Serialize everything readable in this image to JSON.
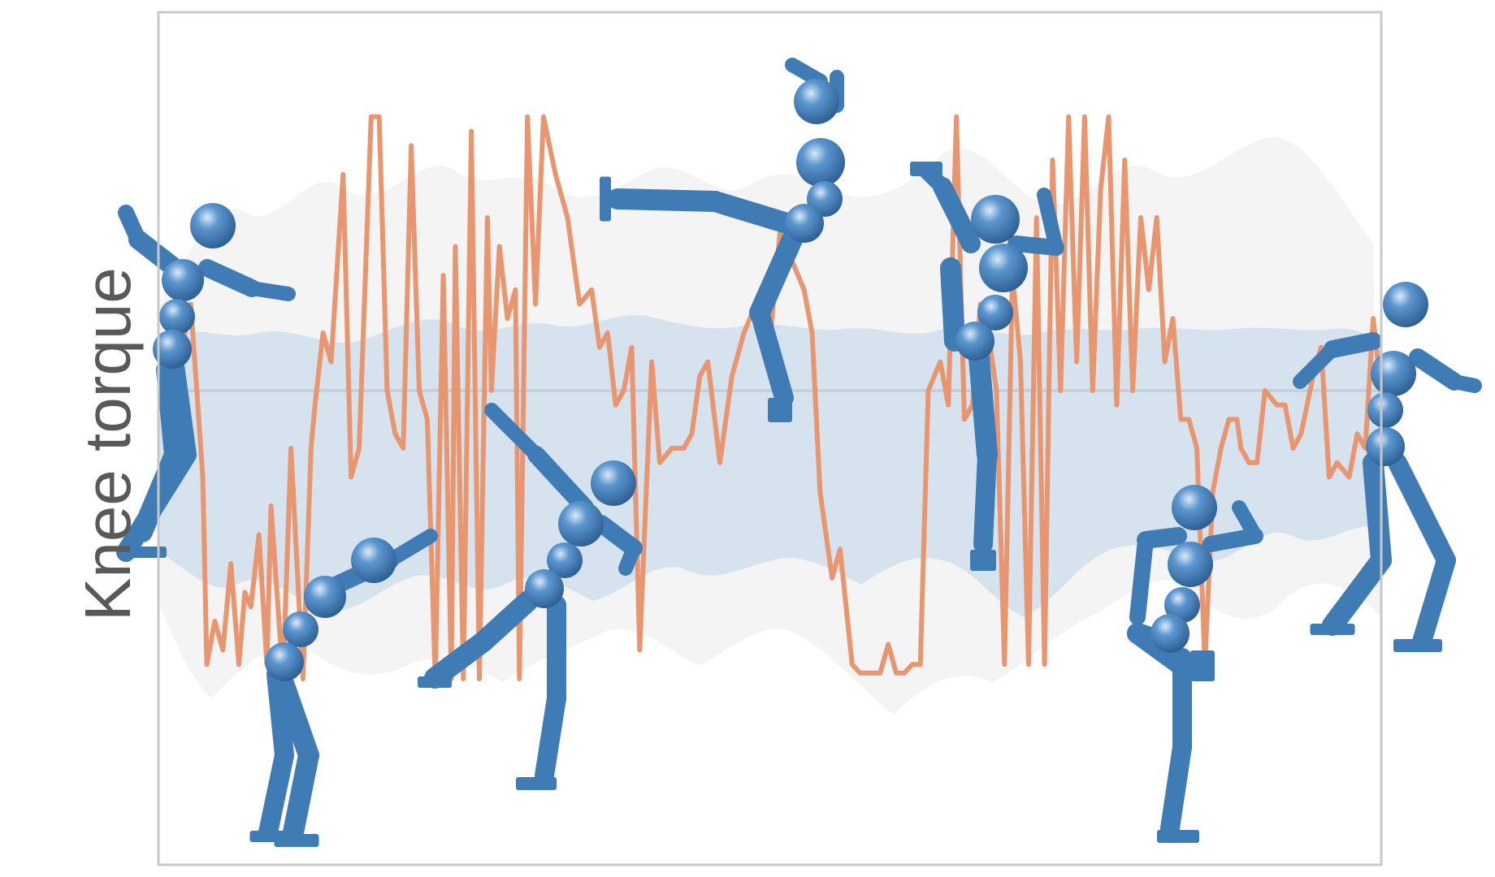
{
  "chart_data": {
    "type": "line",
    "title": "",
    "xlabel": "",
    "ylabel": "Knee torque",
    "xlim": [
      0,
      600
    ],
    "ylim": [
      -1,
      1
    ],
    "grid": false,
    "legend": "none",
    "zero_line": true,
    "series": [
      {
        "x": [
          0,
          6,
          12,
          14,
          18,
          22,
          26,
          30,
          33,
          36,
          40,
          44,
          46,
          52,
          56,
          62,
          66,
          68,
          72,
          76,
          82,
          86,
          90,
          96,
          100,
          104,
          108,
          112,
          116,
          120,
          124,
          128,
          132,
          136,
          138,
          142,
          146,
          150,
          154,
          156,
          160,
          164,
          168,
          170,
          174,
          178,
          182,
          188,
          194,
          200,
          206,
          210,
          214,
          218,
          222,
          226,
          230,
          236,
          240,
          246,
          252,
          256,
          260,
          264,
          270,
          276,
          282,
          288,
          294,
          300,
          306,
          312,
          316,
          320,
          326,
          330,
          336,
          340,
          344,
          350,
          354,
          358,
          362,
          366,
          370,
          374,
          380,
          384,
          388,
          392,
          396,
          400,
          404,
          408,
          412,
          416,
          420,
          424,
          428,
          432,
          436,
          440,
          444,
          448,
          452,
          456,
          460,
          464,
          468,
          472,
          476,
          480,
          484,
          488,
          492,
          496,
          500,
          504,
          508,
          512,
          516,
          520,
          524,
          528,
          530,
          534,
          538,
          542,
          548,
          552,
          556,
          560,
          566,
          570,
          574,
          578,
          584,
          588,
          592,
          596,
          600
        ],
        "values": [
          0.1,
          0.3,
          -0.3,
          -0.95,
          -0.8,
          -0.9,
          -0.6,
          -0.95,
          -0.7,
          -0.75,
          -0.5,
          -0.95,
          -0.4,
          -1.0,
          -0.2,
          -1.0,
          -0.2,
          -0.05,
          0.2,
          0.1,
          0.75,
          -0.3,
          -0.2,
          0.95,
          0.95,
          0.0,
          -0.15,
          -0.2,
          0.85,
          0.0,
          -0.1,
          -1.0,
          0.4,
          -1.0,
          0.5,
          -1.0,
          0.9,
          -1.0,
          0.6,
          0.0,
          0.5,
          0.25,
          0.35,
          -1.0,
          0.95,
          0.3,
          0.95,
          0.75,
          0.6,
          0.3,
          0.35,
          0.15,
          0.2,
          -0.05,
          0.0,
          0.15,
          -0.9,
          0.1,
          -0.25,
          -0.2,
          -0.2,
          -0.15,
          0.05,
          0.1,
          -0.25,
          0.05,
          0.2,
          0.3,
          0.1,
          0.55,
          0.45,
          0.35,
          0.2,
          -0.35,
          -0.65,
          -0.55,
          -0.95,
          -0.98,
          -0.98,
          -0.98,
          -0.88,
          -0.98,
          -0.98,
          -0.95,
          -0.95,
          0.0,
          0.1,
          -0.05,
          0.95,
          -0.1,
          -0.05,
          0.3,
          0.2,
          0.0,
          -0.95,
          0.4,
          0.1,
          -0.95,
          0.6,
          -0.95,
          0.8,
          0.0,
          0.95,
          0.1,
          0.95,
          0.0,
          0.7,
          0.95,
          -0.05,
          0.8,
          0.0,
          0.6,
          0.35,
          0.6,
          0.1,
          0.25,
          -0.1,
          -0.1,
          -0.2,
          -0.95,
          -0.35,
          -0.2,
          -0.1,
          -0.1,
          -0.2,
          -0.25,
          -0.25,
          0.0,
          -0.05,
          -0.05,
          -0.2,
          -0.15,
          0.05,
          0.15,
          -0.3,
          -0.25,
          -0.3,
          -0.15,
          -0.2,
          0.25,
          0.0
        ]
      }
    ]
  },
  "colors": {
    "line": "#e8966f",
    "band_inner": "#d6e3ee",
    "band_outer": "#f4f4f4",
    "figure_blue": "#3f7cb6",
    "frame": "#c8c8c8",
    "zero_line": "#c5d0da"
  }
}
